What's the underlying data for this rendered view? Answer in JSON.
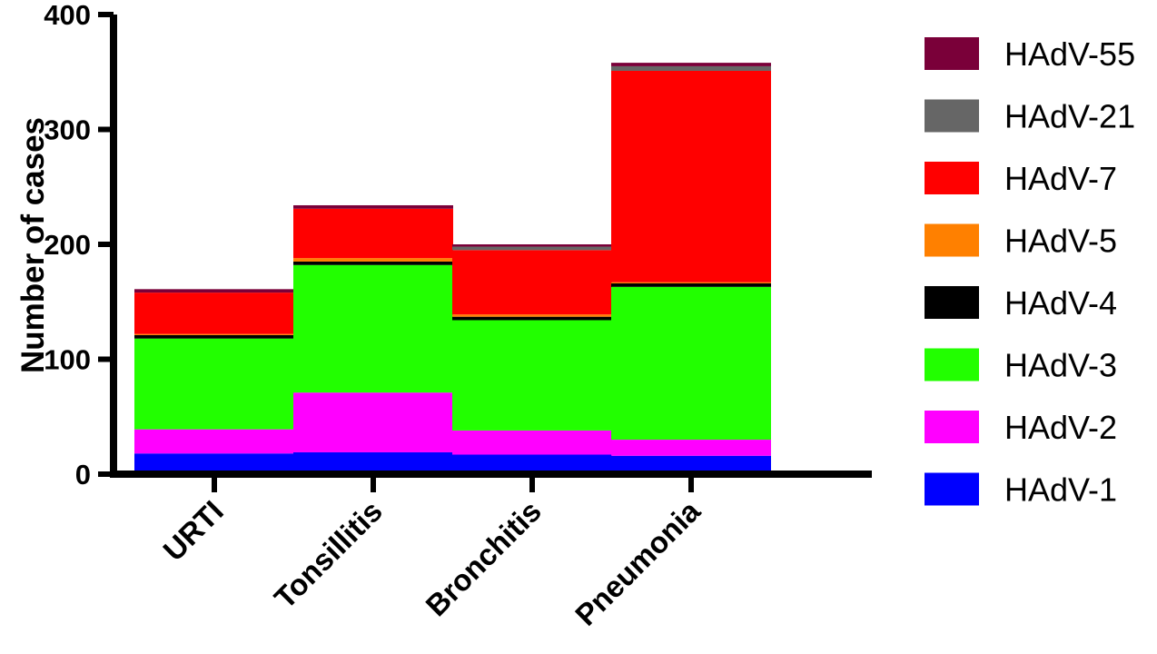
{
  "chart_data": {
    "type": "bar",
    "stacked": true,
    "title": "",
    "xlabel": "",
    "ylabel": "Number of cases",
    "ylim": [
      0,
      400
    ],
    "yticks": [
      "0",
      "100",
      "200",
      "300",
      "400"
    ],
    "grid": false,
    "legend_position": "right",
    "categories": [
      "URTI",
      "Tonsillitis",
      "Bronchitis",
      "Pneumonia"
    ],
    "series": [
      {
        "name": "HAdV-1",
        "color": "#0000ff",
        "values": [
          18,
          19,
          17,
          16
        ]
      },
      {
        "name": "HAdV-2",
        "color": "#ff00ff",
        "values": [
          21,
          52,
          21,
          14
        ]
      },
      {
        "name": "HAdV-3",
        "color": "#22ff00",
        "values": [
          79,
          111,
          96,
          133
        ]
      },
      {
        "name": "HAdV-4",
        "color": "#000000",
        "values": [
          3,
          3,
          3,
          3
        ]
      },
      {
        "name": "HAdV-5",
        "color": "#ff8000",
        "values": [
          1,
          3,
          2,
          1
        ]
      },
      {
        "name": "HAdV-7",
        "color": "#ff0000",
        "values": [
          36,
          43,
          56,
          184
        ]
      },
      {
        "name": "HAdV-21",
        "color": "#666666",
        "values": [
          0,
          0,
          3,
          4
        ]
      },
      {
        "name": "HAdV-55",
        "color": "#7a0039",
        "values": [
          3,
          3,
          2,
          3
        ]
      }
    ]
  }
}
